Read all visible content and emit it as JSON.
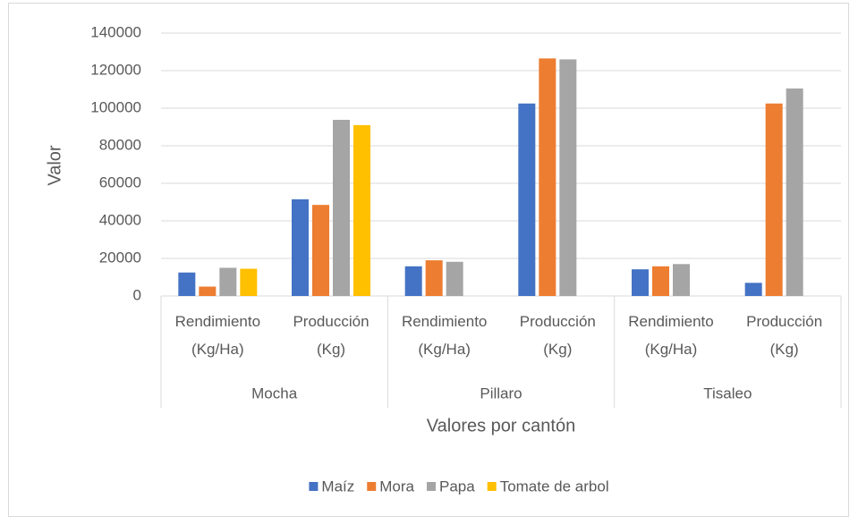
{
  "chart_data": {
    "type": "bar",
    "x_label": "Valores por cantón",
    "y_label": "Valor",
    "categories": [
      "Rendimiento (Kg/Ha)",
      "Producción (Kg)",
      "Rendimiento (Kg/Ha)",
      "Producción (Kg)",
      "Rendimiento (Kg/Ha)",
      "Producción (Kg)"
    ],
    "groups": [
      "Mocha",
      "Pillaro",
      "Tisaleo"
    ],
    "series": [
      {
        "name": "Maíz",
        "color": "#4472c4",
        "values": [
          12500,
          51500,
          15800,
          102500,
          14200,
          7000
        ]
      },
      {
        "name": "Mora",
        "color": "#ed7d31",
        "values": [
          5000,
          48500,
          19000,
          126500,
          15800,
          102500
        ]
      },
      {
        "name": "Papa",
        "color": "#a5a5a5",
        "values": [
          15000,
          93800,
          18200,
          126000,
          17000,
          110500
        ]
      },
      {
        "name": "Tomate de arbol",
        "color": "#ffc000",
        "values": [
          14500,
          91000,
          null,
          null,
          null,
          null
        ]
      }
    ],
    "ylim": [
      0,
      140000
    ],
    "yticks": [
      0,
      20000,
      40000,
      60000,
      80000,
      100000,
      120000,
      140000
    ],
    "grid": true,
    "legend": "bottom"
  }
}
